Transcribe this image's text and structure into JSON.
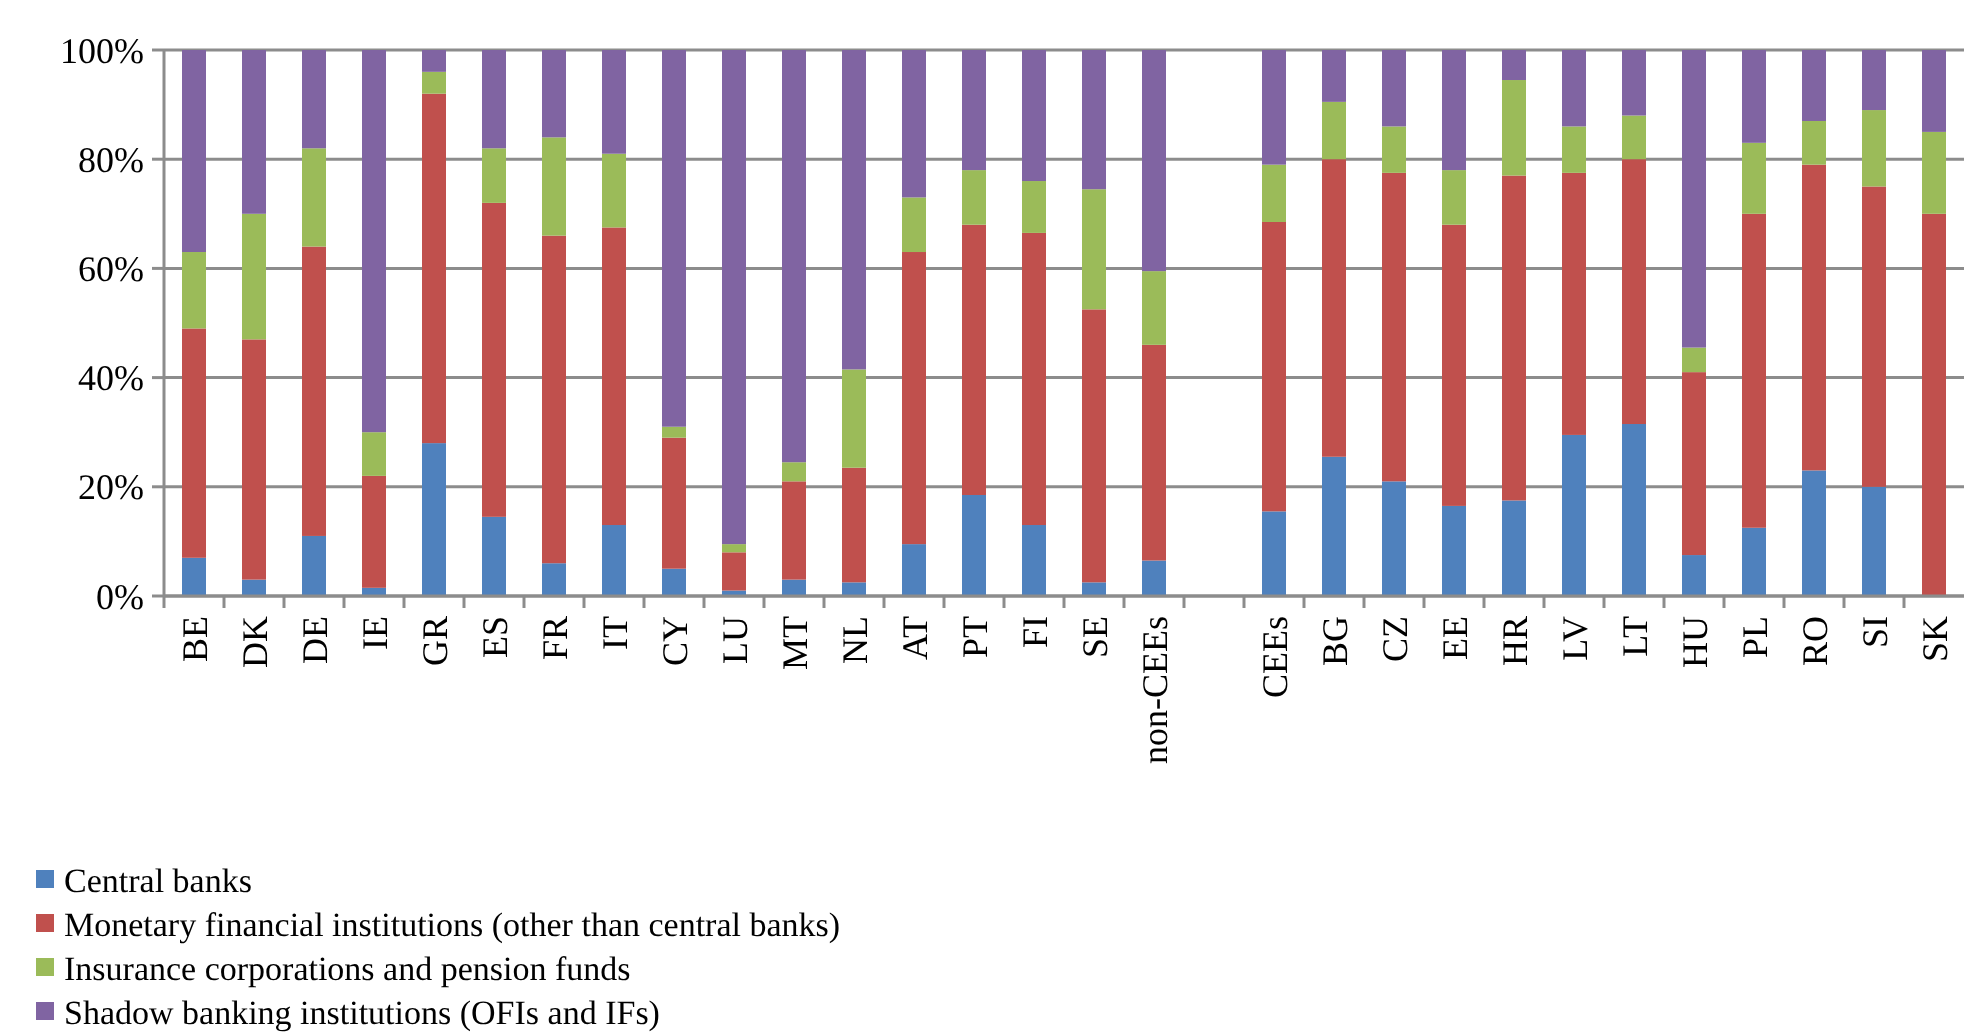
{
  "chart_data": {
    "type": "bar",
    "stacked": true,
    "categories": [
      "BE",
      "DK",
      "DE",
      "IE",
      "GR",
      "ES",
      "FR",
      "IT",
      "CY",
      "LU",
      "MT",
      "NL",
      "AT",
      "PT",
      "FI",
      "SE",
      "non-CEEs",
      null,
      "CEEs",
      "BG",
      "CZ",
      "EE",
      "HR",
      "LV",
      "LT",
      "HU",
      "PL",
      "RO",
      "SI",
      "SK"
    ],
    "series": [
      {
        "name": "Central banks",
        "color": "#4f81bd",
        "values": [
          7,
          3,
          11,
          1.5,
          28,
          14.5,
          6,
          13,
          5,
          1,
          3,
          2.5,
          9.5,
          18.5,
          13,
          2.5,
          6.5,
          null,
          15.5,
          25.5,
          21,
          16.5,
          17.5,
          29.5,
          31.5,
          7.5,
          12.5,
          23,
          20,
          0
        ]
      },
      {
        "name": "Monetary financial institutions (other than central banks)",
        "color": "#c0504d",
        "values": [
          42,
          44,
          53,
          20.5,
          64,
          57.5,
          60,
          54.5,
          24,
          7,
          18,
          21,
          53.5,
          49.5,
          53.5,
          50,
          39.5,
          null,
          53,
          54.5,
          56.5,
          51.5,
          59.5,
          48,
          48.5,
          33.5,
          57.5,
          56,
          55,
          70
        ]
      },
      {
        "name": "Insurance corporations and pension funds",
        "color": "#9bbb59",
        "values": [
          14,
          23,
          18,
          8,
          4,
          10,
          18,
          13.5,
          2,
          1.5,
          3.5,
          18,
          10,
          10,
          9.5,
          22,
          13.5,
          null,
          10.5,
          10.5,
          8.5,
          10,
          17.5,
          8.5,
          8,
          4.5,
          13,
          8,
          14,
          15
        ]
      },
      {
        "name": "Shadow banking institutions (OFIs and IFs)",
        "color": "#8064a2",
        "values": [
          37,
          30,
          18,
          70,
          4,
          18,
          16,
          19,
          69,
          90.5,
          75.5,
          58.5,
          27,
          22,
          24,
          25.5,
          40.5,
          null,
          21,
          9.5,
          14,
          22,
          5.5,
          14,
          12,
          54.5,
          17,
          13,
          11,
          15
        ]
      }
    ],
    "ylim": [
      0,
      100
    ],
    "yticks": [
      {
        "value": 0,
        "label": "0%"
      },
      {
        "value": 20,
        "label": "20%"
      },
      {
        "value": 40,
        "label": "40%"
      },
      {
        "value": 60,
        "label": "60%"
      },
      {
        "value": 80,
        "label": "80%"
      },
      {
        "value": 100,
        "label": "100%"
      }
    ],
    "grid": "y",
    "legend": "bottom"
  }
}
